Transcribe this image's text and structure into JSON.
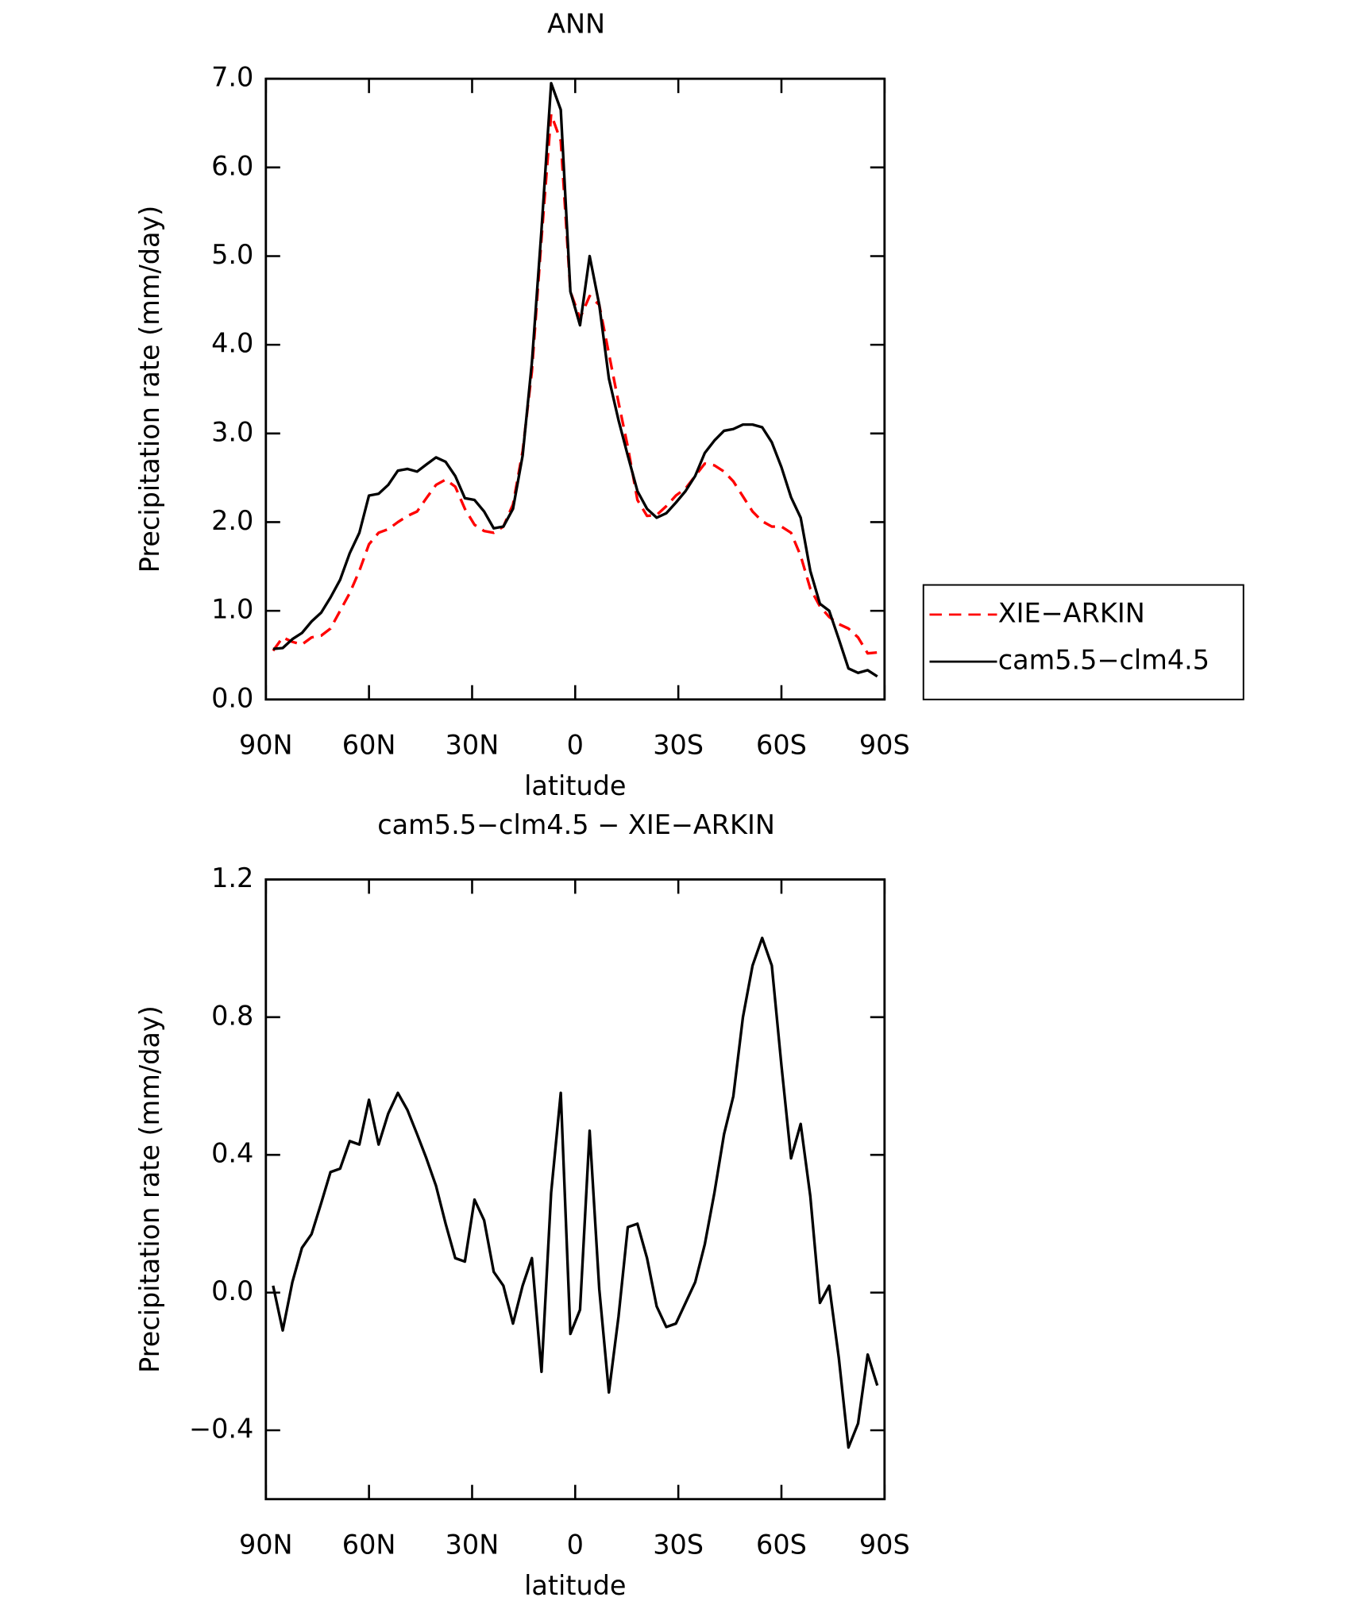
{
  "chart_data": [
    {
      "type": "line",
      "title": "ANN",
      "xlabel": "latitude",
      "ylabel": "Precipitation rate (mm/day)",
      "x": [
        87.9,
        85.1,
        82.3,
        79.5,
        76.7,
        73.9,
        71.2,
        68.4,
        65.6,
        62.8,
        60.0,
        57.2,
        54.4,
        51.6,
        48.8,
        46.0,
        43.3,
        40.5,
        37.7,
        34.9,
        32.1,
        29.3,
        26.5,
        23.7,
        20.9,
        18.1,
        15.3,
        12.6,
        9.8,
        7.0,
        4.2,
        1.4,
        -1.4,
        -4.2,
        -7.0,
        -9.8,
        -12.6,
        -15.3,
        -18.1,
        -20.9,
        -23.7,
        -26.5,
        -29.3,
        -32.1,
        -34.9,
        -37.7,
        -40.5,
        -43.3,
        -46.0,
        -48.8,
        -51.6,
        -54.4,
        -57.2,
        -60.0,
        -62.8,
        -65.6,
        -68.4,
        -71.2,
        -73.9,
        -76.7,
        -79.5,
        -82.3,
        -85.1,
        -87.9
      ],
      "xlim": [
        90,
        -90
      ],
      "xticks": [
        {
          "value": 90,
          "label": "90N"
        },
        {
          "value": 60,
          "label": "60N"
        },
        {
          "value": 30,
          "label": "30N"
        },
        0,
        {
          "value": -30,
          "label": "30S"
        },
        {
          "value": -60,
          "label": "60S"
        },
        {
          "value": -90,
          "label": "90S"
        }
      ],
      "ylim": [
        0,
        7
      ],
      "yticks": [
        {
          "value": 0,
          "label": "0.0"
        },
        {
          "value": 1,
          "label": "1.0"
        },
        {
          "value": 2,
          "label": "2.0"
        },
        {
          "value": 3,
          "label": "3.0"
        },
        {
          "value": 4,
          "label": "4.0"
        },
        {
          "value": 5,
          "label": "5.0"
        },
        {
          "value": 6,
          "label": "6.0"
        },
        {
          "value": 7,
          "label": "7.0"
        }
      ],
      "legend": "right",
      "series": [
        {
          "name": "XIE−ARKIN",
          "color": "#ff0000",
          "line_style": "dashed",
          "values": [
            0.55,
            0.7,
            0.65,
            0.62,
            0.7,
            0.72,
            0.8,
            1.0,
            1.2,
            1.45,
            1.75,
            1.88,
            1.92,
            2.0,
            2.07,
            2.12,
            2.27,
            2.42,
            2.48,
            2.4,
            2.15,
            1.97,
            1.9,
            1.88,
            1.95,
            2.2,
            2.8,
            3.7,
            5.2,
            6.6,
            6.3,
            4.6,
            4.3,
            4.55,
            4.45,
            3.9,
            3.35,
            2.85,
            2.25,
            2.07,
            2.08,
            2.18,
            2.3,
            2.38,
            2.52,
            2.66,
            2.64,
            2.57,
            2.46,
            2.29,
            2.12,
            2.01,
            1.95,
            1.95,
            1.88,
            1.62,
            1.25,
            1.05,
            0.93,
            0.85,
            0.8,
            0.7,
            0.52,
            0.53
          ]
        },
        {
          "name": "cam5.5−clm4.5",
          "color": "#000000",
          "line_style": "solid",
          "values": [
            0.57,
            0.58,
            0.68,
            0.75,
            0.88,
            0.98,
            1.15,
            1.35,
            1.65,
            1.88,
            2.3,
            2.32,
            2.42,
            2.58,
            2.6,
            2.57,
            2.65,
            2.73,
            2.68,
            2.52,
            2.27,
            2.25,
            2.12,
            1.93,
            1.95,
            2.15,
            2.75,
            3.8,
            5.3,
            6.95,
            6.65,
            4.6,
            4.22,
            5.0,
            4.45,
            3.62,
            3.15,
            2.75,
            2.35,
            2.15,
            2.05,
            2.1,
            2.22,
            2.35,
            2.52,
            2.78,
            2.92,
            3.03,
            3.05,
            3.1,
            3.1,
            3.07,
            2.9,
            2.62,
            2.28,
            2.05,
            1.45,
            1.08,
            1.0,
            0.68,
            0.35,
            0.3,
            0.33,
            0.26
          ]
        }
      ]
    },
    {
      "type": "line",
      "title": "cam5.5−clm4.5 − XIE−ARKIN",
      "xlabel": "latitude",
      "ylabel": "Precipitation rate (mm/day)",
      "x": [
        87.9,
        85.1,
        82.3,
        79.5,
        76.7,
        73.9,
        71.2,
        68.4,
        65.6,
        62.8,
        60.0,
        57.2,
        54.4,
        51.6,
        48.8,
        46.0,
        43.3,
        40.5,
        37.7,
        34.9,
        32.1,
        29.3,
        26.5,
        23.7,
        20.9,
        18.1,
        15.3,
        12.6,
        9.8,
        7.0,
        4.2,
        1.4,
        -1.4,
        -4.2,
        -7.0,
        -9.8,
        -12.6,
        -15.3,
        -18.1,
        -20.9,
        -23.7,
        -26.5,
        -29.3,
        -32.1,
        -34.9,
        -37.7,
        -40.5,
        -43.3,
        -46.0,
        -48.8,
        -51.6,
        -54.4,
        -57.2,
        -60.0,
        -62.8,
        -65.6,
        -68.4,
        -71.2,
        -73.9,
        -76.7,
        -79.5,
        -82.3,
        -85.1,
        -87.9
      ],
      "xlim": [
        90,
        -90
      ],
      "xticks": [
        {
          "value": 90,
          "label": "90N"
        },
        {
          "value": 60,
          "label": "60N"
        },
        {
          "value": 30,
          "label": "30N"
        },
        0,
        {
          "value": -30,
          "label": "30S"
        },
        {
          "value": -60,
          "label": "60S"
        },
        {
          "value": -90,
          "label": "90S"
        }
      ],
      "ylim": [
        -0.6,
        1.2
      ],
      "yticks": [
        {
          "value": -0.4,
          "label": "−0.4"
        },
        {
          "value": 0,
          "label": "0.0"
        },
        0.4,
        0.8,
        1.2
      ],
      "series": [
        {
          "color": "#000000",
          "line_style": "solid",
          "values": [
            0.02,
            -0.11,
            0.03,
            0.13,
            0.17,
            0.26,
            0.35,
            0.36,
            0.44,
            0.43,
            0.56,
            0.43,
            0.52,
            0.58,
            0.53,
            0.46,
            0.39,
            0.31,
            0.2,
            0.1,
            0.09,
            0.27,
            0.21,
            0.06,
            0.02,
            -0.09,
            0.02,
            0.1,
            -0.23,
            0.29,
            0.58,
            -0.12,
            -0.05,
            0.47,
            0.01,
            -0.29,
            -0.07,
            0.19,
            0.2,
            0.1,
            -0.04,
            -0.1,
            -0.09,
            -0.03,
            0.03,
            0.14,
            0.29,
            0.46,
            0.57,
            0.8,
            0.95,
            1.03,
            0.95,
            0.66,
            0.39,
            0.49,
            0.28,
            -0.03,
            0.02,
            -0.19,
            -0.45,
            -0.38,
            -0.18,
            -0.27
          ]
        }
      ]
    }
  ]
}
